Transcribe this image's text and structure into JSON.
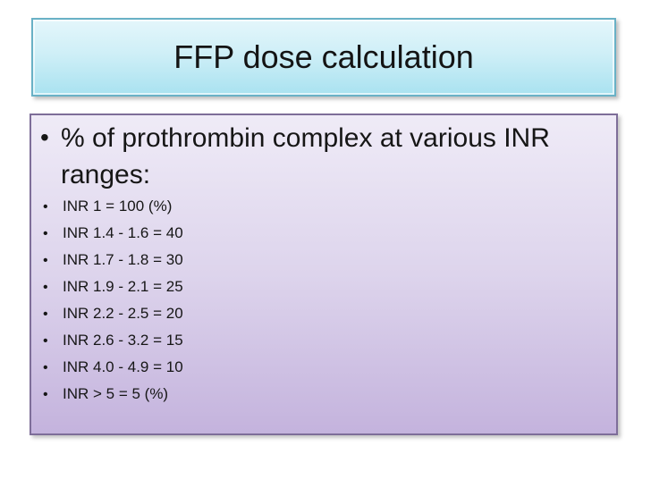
{
  "slide": {
    "title": "FFP dose calculation",
    "bullet_char": "•",
    "content": {
      "lead_bullet": "% of prothrombin complex at various INR ranges:",
      "items": [
        "INR 1 = 100 (%)",
        "INR 1.4 - 1.6 = 40",
        "INR 1.7 - 1.8 = 30",
        "INR 1.9 - 2.1 = 25",
        "INR 2.2 - 2.5 = 20",
        "INR 2.6 - 3.2 = 15",
        "INR 4.0 - 4.9 = 10",
        "INR > 5 = 5 (%)"
      ]
    },
    "colors": {
      "background": "#ffffff",
      "title_fill_top": "#e4f6fb",
      "title_fill_bottom": "#a9e2f0",
      "title_border": "#69b1c6",
      "body_fill_top": "#efebf7",
      "body_fill_bottom": "#c4b3dd",
      "body_border": "#7e6e99",
      "text": "#161616"
    }
  }
}
